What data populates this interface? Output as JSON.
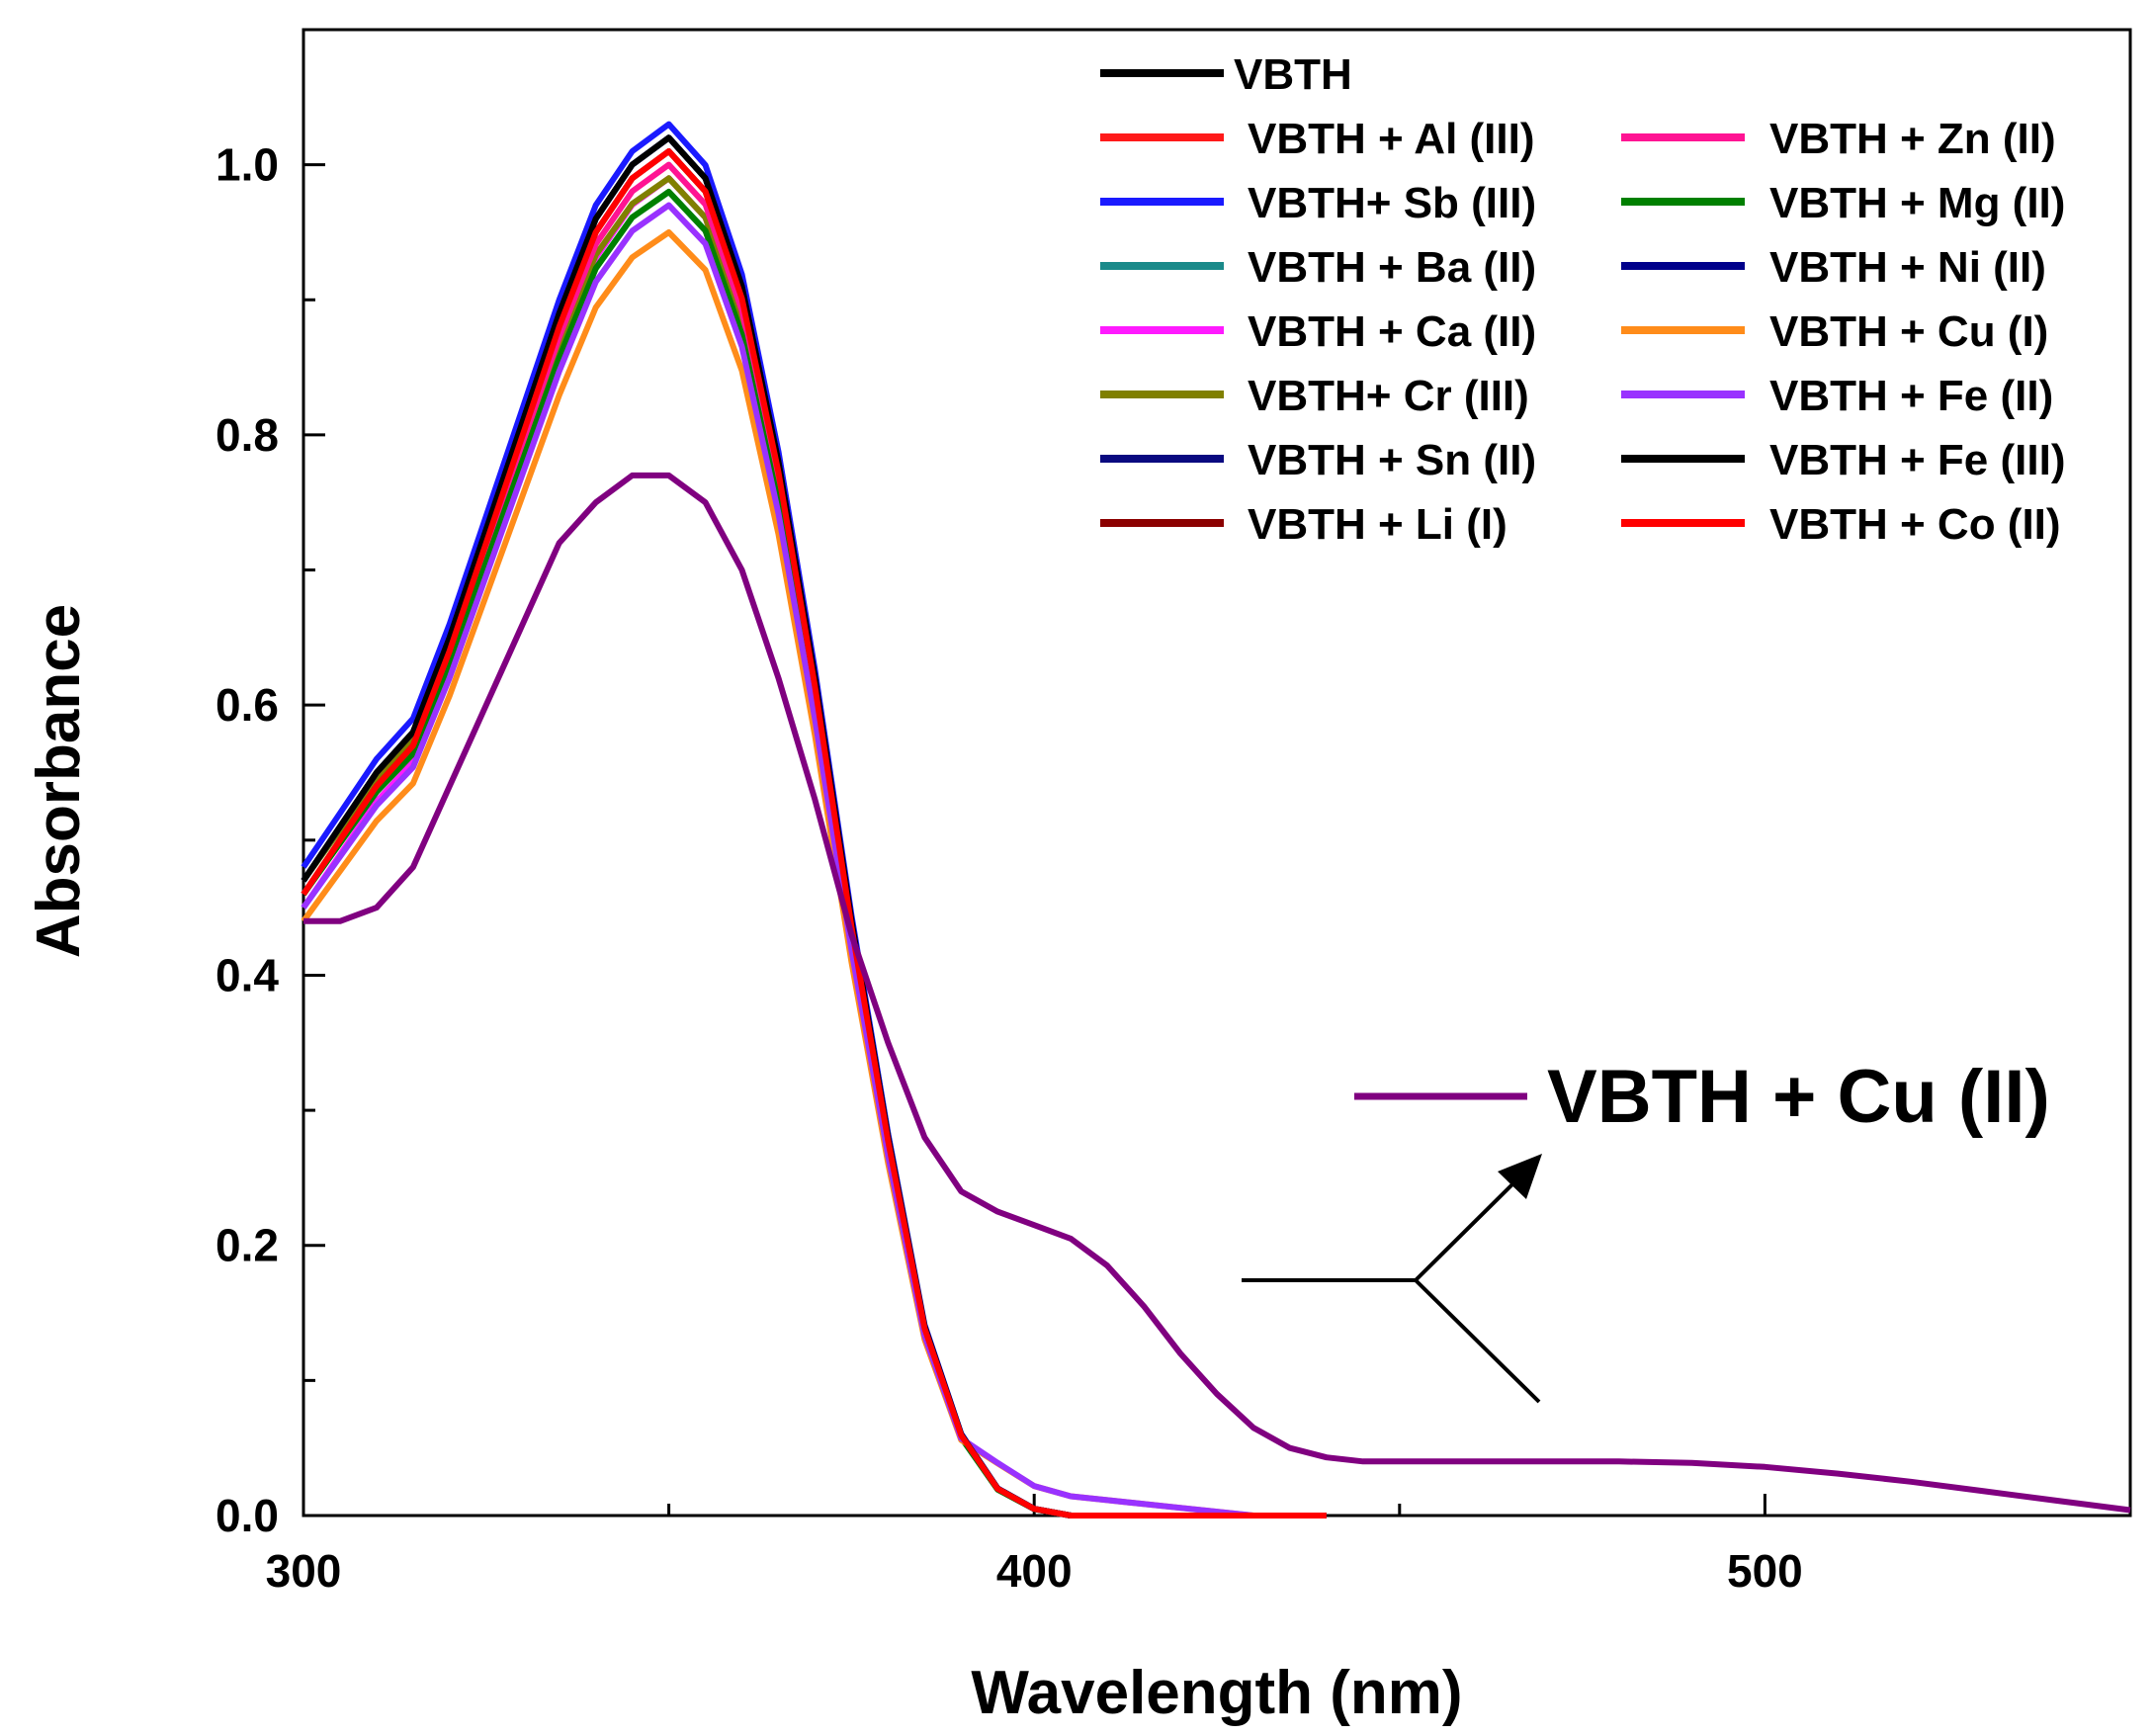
{
  "chart_data": {
    "type": "line",
    "title": "",
    "xlabel": "Wavelength (nm)",
    "ylabel": "Absorbance",
    "xlim": [
      300,
      550
    ],
    "ylim": [
      0.0,
      1.1
    ],
    "x_ticks": [
      300,
      400,
      500
    ],
    "y_ticks": [
      "0.0",
      "0.2",
      "0.4",
      "0.6",
      "0.8",
      "1.0"
    ],
    "grid": false,
    "legend_position": "top-right",
    "series": [
      {
        "name": "VBTH",
        "color": "#000000",
        "peak": 1.02,
        "start": 0.47
      },
      {
        "name": "VBTH + Al (III)",
        "color": "#ff1a1a",
        "peak": 1.01,
        "start": 0.46
      },
      {
        "name": "VBTH+ Sb (III)",
        "color": "#1a1aff",
        "peak": 1.03,
        "start": 0.48
      },
      {
        "name": "VBTH + Ba (II)",
        "color": "#1a8a8a",
        "peak": 0.98,
        "start": 0.46
      },
      {
        "name": "VBTH + Ca (II)",
        "color": "#ff1aff",
        "peak": 0.99,
        "start": 0.45
      },
      {
        "name": "VBTH+ Cr (III)",
        "color": "#808000",
        "peak": 0.99,
        "start": 0.47
      },
      {
        "name": "VBTH + Sn (II)",
        "color": "#0a0a80",
        "peak": 1.02,
        "start": 0.47
      },
      {
        "name": "VBTH + Li (I)",
        "color": "#8b0000",
        "peak": 1.01,
        "start": 0.46
      },
      {
        "name": "VBTH + Zn (II)",
        "color": "#ff1493",
        "peak": 1.0,
        "start": 0.46
      },
      {
        "name": "VBTH + Mg (II)",
        "color": "#008000",
        "peak": 0.98,
        "start": 0.46
      },
      {
        "name": "VBTH + Ni (II)",
        "color": "#00008b",
        "peak": 1.02,
        "start": 0.47
      },
      {
        "name": "VBTH + Cu (I)",
        "color": "#ff8c1a",
        "peak": 0.95,
        "start": 0.44
      },
      {
        "name": "VBTH + Fe (II)",
        "color": "#9932ff",
        "peak": 0.97,
        "start": 0.45
      },
      {
        "name": "VBTH + Fe (III)",
        "color": "#000000",
        "peak": 1.02,
        "start": 0.47
      },
      {
        "name": "VBTH + Co (II)",
        "color": "#ff0000",
        "peak": 1.01,
        "start": 0.46
      }
    ],
    "special_series": {
      "name": "VBTH + Cu (II)",
      "color": "#800080",
      "x": [
        300,
        305,
        310,
        315,
        320,
        325,
        330,
        335,
        340,
        345,
        350,
        355,
        360,
        365,
        370,
        375,
        380,
        385,
        390,
        395,
        400,
        405,
        410,
        415,
        420,
        425,
        430,
        435,
        440,
        445,
        450,
        460,
        470,
        480,
        490,
        500,
        510,
        520,
        530,
        540,
        550
      ],
      "y": [
        0.44,
        0.44,
        0.45,
        0.48,
        0.54,
        0.6,
        0.66,
        0.72,
        0.75,
        0.77,
        0.77,
        0.75,
        0.7,
        0.62,
        0.53,
        0.43,
        0.35,
        0.28,
        0.24,
        0.225,
        0.215,
        0.205,
        0.185,
        0.155,
        0.12,
        0.09,
        0.065,
        0.05,
        0.043,
        0.04,
        0.04,
        0.04,
        0.04,
        0.04,
        0.039,
        0.036,
        0.031,
        0.025,
        0.018,
        0.011,
        0.004
      ]
    },
    "annotation": "VBTH + Cu (II)"
  }
}
